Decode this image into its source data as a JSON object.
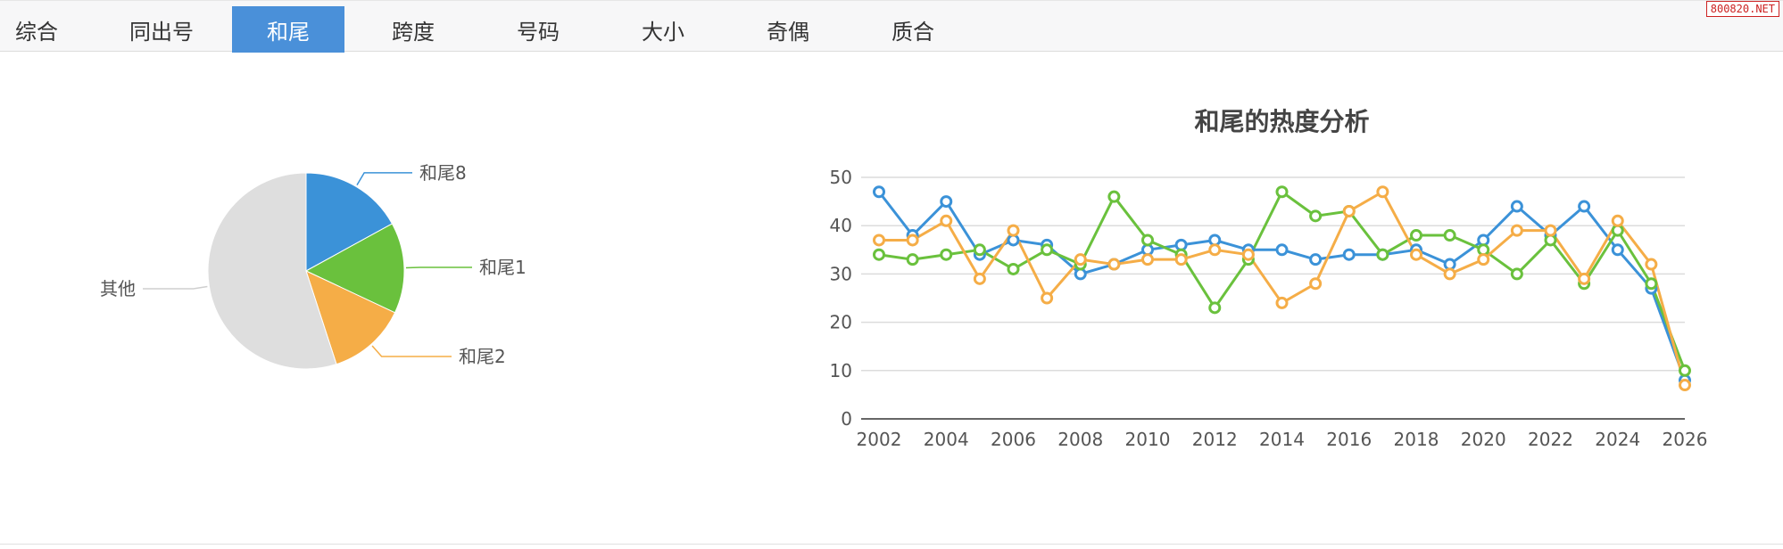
{
  "tabs": [
    {
      "label": "综合",
      "active": false
    },
    {
      "label": "同出号",
      "active": false
    },
    {
      "label": "和尾",
      "active": true
    },
    {
      "label": "跨度",
      "active": false
    },
    {
      "label": "号码",
      "active": false
    },
    {
      "label": "大小",
      "active": false
    },
    {
      "label": "奇偶",
      "active": false
    },
    {
      "label": "质合",
      "active": false
    }
  ],
  "watermark": "800820.NET",
  "chart_data": [
    {
      "type": "pie",
      "slices": [
        {
          "label": "和尾8",
          "value": 17,
          "color": "#3b92d8"
        },
        {
          "label": "和尾1",
          "value": 15,
          "color": "#6ac13d"
        },
        {
          "label": "和尾2",
          "value": 13,
          "color": "#f5ad47"
        },
        {
          "label": "其他",
          "value": 55,
          "color": "#dedede"
        }
      ]
    },
    {
      "type": "line",
      "title": "和尾的热度分析",
      "x": [
        2002,
        2003,
        2004,
        2005,
        2006,
        2007,
        2008,
        2009,
        2010,
        2011,
        2012,
        2013,
        2014,
        2015,
        2016,
        2017,
        2018,
        2019,
        2020,
        2021,
        2022,
        2023,
        2024,
        2025,
        2026
      ],
      "xticks": [
        2002,
        2004,
        2006,
        2008,
        2010,
        2012,
        2014,
        2016,
        2018,
        2020,
        2022,
        2024,
        2026
      ],
      "yticks": [
        0,
        10,
        20,
        30,
        40,
        50
      ],
      "ylim": [
        0,
        50
      ],
      "grid": true,
      "series": [
        {
          "color": "#3b92d8",
          "values": [
            47,
            38,
            45,
            34,
            37,
            36,
            30,
            32,
            35,
            36,
            37,
            35,
            35,
            33,
            34,
            34,
            35,
            32,
            37,
            44,
            38,
            44,
            35,
            27,
            8
          ]
        },
        {
          "color": "#6ac13d",
          "values": [
            34,
            33,
            34,
            35,
            31,
            35,
            32,
            46,
            37,
            34,
            23,
            33,
            47,
            42,
            43,
            34,
            38,
            38,
            35,
            30,
            37,
            28,
            39,
            28,
            10
          ]
        },
        {
          "color": "#f5ad47",
          "values": [
            37,
            37,
            41,
            29,
            39,
            25,
            33,
            32,
            33,
            33,
            35,
            34,
            24,
            28,
            43,
            47,
            34,
            30,
            33,
            39,
            39,
            29,
            41,
            32,
            7
          ]
        }
      ]
    }
  ]
}
